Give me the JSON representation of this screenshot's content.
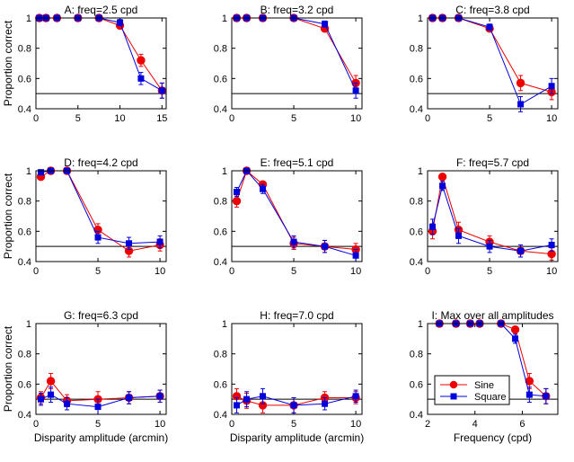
{
  "figure": {
    "series_names": [
      "Sine",
      "Square"
    ],
    "series_colors": [
      "#ee0000",
      "#0000dd"
    ],
    "reference_line": 0.5
  },
  "chart_data": [
    {
      "type": "line",
      "title": "A: freq=2.5 cpd",
      "xlabel": "",
      "ylabel": "Proportion correct",
      "xlim": [
        0,
        15.5
      ],
      "ylim": [
        0.4,
        1.0
      ],
      "xticks": [
        0,
        5,
        10,
        15
      ],
      "yticks": [
        0.4,
        0.6,
        0.8,
        1.0
      ],
      "x": [
        0.4,
        1.2,
        2.5,
        5,
        7.5,
        10,
        12.5,
        15
      ],
      "series": [
        {
          "name": "Sine",
          "values": [
            1.0,
            1.0,
            1.0,
            1.0,
            1.0,
            0.95,
            0.72,
            0.52
          ],
          "errors": [
            0,
            0,
            0,
            0,
            0,
            0.02,
            0.04,
            0.05
          ]
        },
        {
          "name": "Square",
          "values": [
            1.0,
            1.0,
            1.0,
            1.0,
            1.0,
            0.97,
            0.6,
            0.52
          ],
          "errors": [
            0,
            0,
            0,
            0,
            0,
            0.02,
            0.04,
            0.05
          ]
        }
      ]
    },
    {
      "type": "line",
      "title": "B: freq=3.2 cpd",
      "xlabel": "",
      "ylabel": "",
      "xlim": [
        0,
        10.5
      ],
      "ylim": [
        0.4,
        1.0
      ],
      "xticks": [
        0,
        5,
        10
      ],
      "yticks": [
        0.4,
        0.6,
        0.8,
        1.0
      ],
      "x": [
        0.4,
        1.2,
        2.5,
        5,
        7.5,
        10
      ],
      "series": [
        {
          "name": "Sine",
          "values": [
            1.0,
            1.0,
            1.0,
            1.0,
            0.93,
            0.57
          ],
          "errors": [
            0,
            0,
            0,
            0,
            0.02,
            0.05
          ]
        },
        {
          "name": "Square",
          "values": [
            1.0,
            1.0,
            1.0,
            1.0,
            0.96,
            0.52
          ],
          "errors": [
            0,
            0,
            0,
            0,
            0.02,
            0.05
          ]
        }
      ]
    },
    {
      "type": "line",
      "title": "C: freq=3.8 cpd",
      "xlabel": "",
      "ylabel": "",
      "xlim": [
        0,
        10.5
      ],
      "ylim": [
        0.4,
        1.0
      ],
      "xticks": [
        0,
        5,
        10
      ],
      "yticks": [
        0.4,
        0.6,
        0.8,
        1.0
      ],
      "x": [
        0.4,
        1.2,
        2.5,
        5,
        7.5,
        10
      ],
      "series": [
        {
          "name": "Sine",
          "values": [
            1.0,
            1.0,
            1.0,
            0.93,
            0.57,
            0.51
          ],
          "errors": [
            0,
            0,
            0,
            0.02,
            0.05,
            0.05
          ]
        },
        {
          "name": "Square",
          "values": [
            1.0,
            1.0,
            1.0,
            0.94,
            0.43,
            0.55
          ],
          "errors": [
            0,
            0,
            0,
            0.02,
            0.05,
            0.05
          ]
        }
      ]
    },
    {
      "type": "line",
      "title": "D: freq=4.2 cpd",
      "xlabel": "",
      "ylabel": "Proportion correct",
      "xlim": [
        0,
        10.5
      ],
      "ylim": [
        0.4,
        1.0
      ],
      "xticks": [
        0,
        5,
        10
      ],
      "yticks": [
        0.4,
        0.6,
        0.8,
        1.0
      ],
      "x": [
        0.4,
        1.2,
        2.5,
        5,
        7.5,
        10
      ],
      "series": [
        {
          "name": "Sine",
          "values": [
            0.96,
            1.0,
            1.0,
            0.61,
            0.47,
            0.51
          ],
          "errors": [
            0.02,
            0,
            0,
            0.04,
            0.04,
            0.04
          ]
        },
        {
          "name": "Square",
          "values": [
            0.99,
            1.0,
            1.0,
            0.56,
            0.52,
            0.53
          ],
          "errors": [
            0.01,
            0,
            0,
            0.04,
            0.04,
            0.04
          ]
        }
      ]
    },
    {
      "type": "line",
      "title": "E: freq=5.1 cpd",
      "xlabel": "",
      "ylabel": "",
      "xlim": [
        0,
        10.5
      ],
      "ylim": [
        0.4,
        1.0
      ],
      "xticks": [
        0,
        5,
        10
      ],
      "yticks": [
        0.4,
        0.6,
        0.8,
        1.0
      ],
      "x": [
        0.4,
        1.2,
        2.5,
        5,
        7.5,
        10
      ],
      "series": [
        {
          "name": "Sine",
          "values": [
            0.8,
            1.0,
            0.91,
            0.52,
            0.5,
            0.48
          ],
          "errors": [
            0.04,
            0,
            0.02,
            0.04,
            0.04,
            0.04
          ]
        },
        {
          "name": "Square",
          "values": [
            0.86,
            1.0,
            0.88,
            0.53,
            0.5,
            0.44
          ],
          "errors": [
            0.03,
            0,
            0.03,
            0.04,
            0.04,
            0.04
          ]
        }
      ]
    },
    {
      "type": "line",
      "title": "F: freq=5.7 cpd",
      "xlabel": "",
      "ylabel": "",
      "xlim": [
        0,
        10.5
      ],
      "ylim": [
        0.4,
        1.0
      ],
      "xticks": [
        0,
        5,
        10
      ],
      "yticks": [
        0.4,
        0.6,
        0.8,
        1.0
      ],
      "x": [
        0.4,
        1.2,
        2.5,
        5,
        7.5,
        10
      ],
      "series": [
        {
          "name": "Sine",
          "values": [
            0.6,
            0.96,
            0.61,
            0.53,
            0.47,
            0.45
          ],
          "errors": [
            0.05,
            0.02,
            0.05,
            0.04,
            0.04,
            0.04
          ]
        },
        {
          "name": "Square",
          "values": [
            0.63,
            0.9,
            0.57,
            0.5,
            0.47,
            0.51
          ],
          "errors": [
            0.05,
            0.03,
            0.05,
            0.04,
            0.04,
            0.04
          ]
        }
      ]
    },
    {
      "type": "line",
      "title": "G: freq=6.3 cpd",
      "xlabel": "Disparity amplitude (arcmin)",
      "ylabel": "Proportion correct",
      "xlim": [
        0,
        10.5
      ],
      "ylim": [
        0.4,
        1.0
      ],
      "xticks": [
        0,
        5,
        10
      ],
      "yticks": [
        0.4,
        0.6,
        0.8,
        1.0
      ],
      "x": [
        0.4,
        1.2,
        2.5,
        5,
        7.5,
        10
      ],
      "series": [
        {
          "name": "Sine",
          "values": [
            0.51,
            0.62,
            0.49,
            0.5,
            0.51,
            0.52
          ],
          "errors": [
            0.04,
            0.05,
            0.04,
            0.05,
            0.04,
            0.04
          ]
        },
        {
          "name": "Square",
          "values": [
            0.5,
            0.53,
            0.47,
            0.45,
            0.51,
            0.52
          ],
          "errors": [
            0.04,
            0.05,
            0.04,
            0.05,
            0.04,
            0.04
          ]
        }
      ]
    },
    {
      "type": "line",
      "title": "H: freq=7.0 cpd",
      "xlabel": "Disparity amplitude (arcmin)",
      "ylabel": "",
      "xlim": [
        0,
        10.5
      ],
      "ylim": [
        0.4,
        1.0
      ],
      "xticks": [
        0,
        5,
        10
      ],
      "yticks": [
        0.4,
        0.6,
        0.8,
        1.0
      ],
      "x": [
        0.4,
        1.2,
        2.5,
        5,
        7.5,
        10
      ],
      "series": [
        {
          "name": "Sine",
          "values": [
            0.52,
            0.49,
            0.46,
            0.46,
            0.51,
            0.51
          ],
          "errors": [
            0.05,
            0.05,
            0.05,
            0.05,
            0.04,
            0.04
          ]
        },
        {
          "name": "Square",
          "values": [
            0.46,
            0.5,
            0.52,
            0.46,
            0.47,
            0.52
          ],
          "errors": [
            0.05,
            0.05,
            0.05,
            0.05,
            0.04,
            0.04
          ]
        }
      ]
    },
    {
      "type": "line",
      "title": "I: Max over all amplitudes",
      "xlabel": "Frequency (cpd)",
      "ylabel": "",
      "xlim": [
        2,
        7.5
      ],
      "ylim": [
        0.4,
        1.0
      ],
      "xticks": [
        2,
        4,
        6
      ],
      "yticks": [
        0.4,
        0.6,
        0.8,
        1.0
      ],
      "legend": {
        "position": "bottom-left",
        "entries": [
          "Sine",
          "Square"
        ]
      },
      "x": [
        2.5,
        3.2,
        3.8,
        4.2,
        5.1,
        5.7,
        6.3,
        7.0
      ],
      "series": [
        {
          "name": "Sine",
          "values": [
            1.0,
            1.0,
            1.0,
            1.0,
            1.0,
            0.96,
            0.62,
            0.52
          ],
          "errors": [
            0,
            0,
            0,
            0,
            0,
            0.02,
            0.05,
            0.05
          ]
        },
        {
          "name": "Square",
          "values": [
            1.0,
            1.0,
            1.0,
            1.0,
            1.0,
            0.9,
            0.53,
            0.52
          ],
          "errors": [
            0,
            0,
            0,
            0,
            0,
            0.03,
            0.05,
            0.05
          ]
        }
      ]
    }
  ]
}
